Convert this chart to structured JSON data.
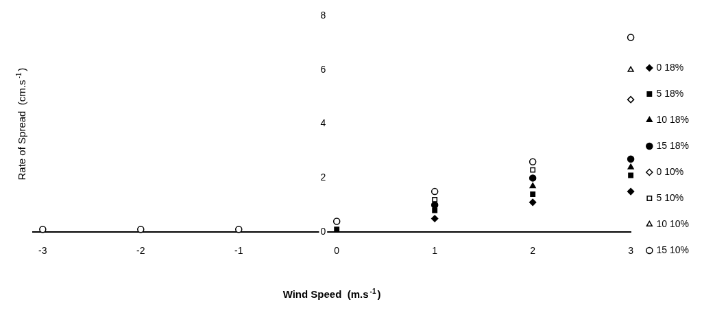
{
  "chart_data": {
    "type": "scatter",
    "xlabel": "Wind Speed  (m.s$^{-1}$)",
    "ylabel": "Rate of Spread  (cm.s$^{-1}$)",
    "x": [
      -3,
      -2,
      -1,
      0,
      1,
      2,
      3
    ],
    "xlim": [
      -3.1,
      3
    ],
    "ylim": [
      0,
      8
    ],
    "xticks": [
      -3,
      -2,
      -1,
      0,
      1,
      2,
      3
    ],
    "yticks": [
      0,
      2,
      4,
      6,
      8
    ],
    "grid": false,
    "legend": "right",
    "series": [
      {
        "name": "0 18%",
        "color": "#000000",
        "marker": "diamond",
        "values": [
          null,
          null,
          null,
          null,
          0.5,
          1.1,
          1.5
        ]
      },
      {
        "name": "5 18%",
        "color": "#000000",
        "marker": "square",
        "values": [
          null,
          null,
          null,
          0.1,
          0.8,
          1.4,
          2.1
        ]
      },
      {
        "name": "10 18%",
        "color": "#000000",
        "marker": "triangle",
        "values": [
          null,
          null,
          null,
          null,
          null,
          1.7,
          2.4
        ]
      },
      {
        "name": "15 18%",
        "color": "#000000",
        "marker": "circle",
        "values": [
          null,
          null,
          null,
          null,
          1.0,
          2.0,
          2.7
        ]
      },
      {
        "name": "0 10%",
        "color": "#ffffff",
        "marker": "diamond",
        "values": [
          null,
          null,
          null,
          null,
          null,
          null,
          4.9
        ]
      },
      {
        "name": "5 10%",
        "color": "#ffffff",
        "marker": "square",
        "values": [
          null,
          null,
          null,
          null,
          1.2,
          2.3,
          null
        ]
      },
      {
        "name": "10 10%",
        "color": "#ffffff",
        "marker": "triangle",
        "values": [
          null,
          null,
          null,
          null,
          null,
          null,
          6.0
        ]
      },
      {
        "name": "15 10%",
        "color": "#ffffff",
        "marker": "circle",
        "values": [
          0.1,
          0.1,
          0.1,
          0.4,
          1.5,
          2.6,
          7.2
        ]
      }
    ]
  }
}
